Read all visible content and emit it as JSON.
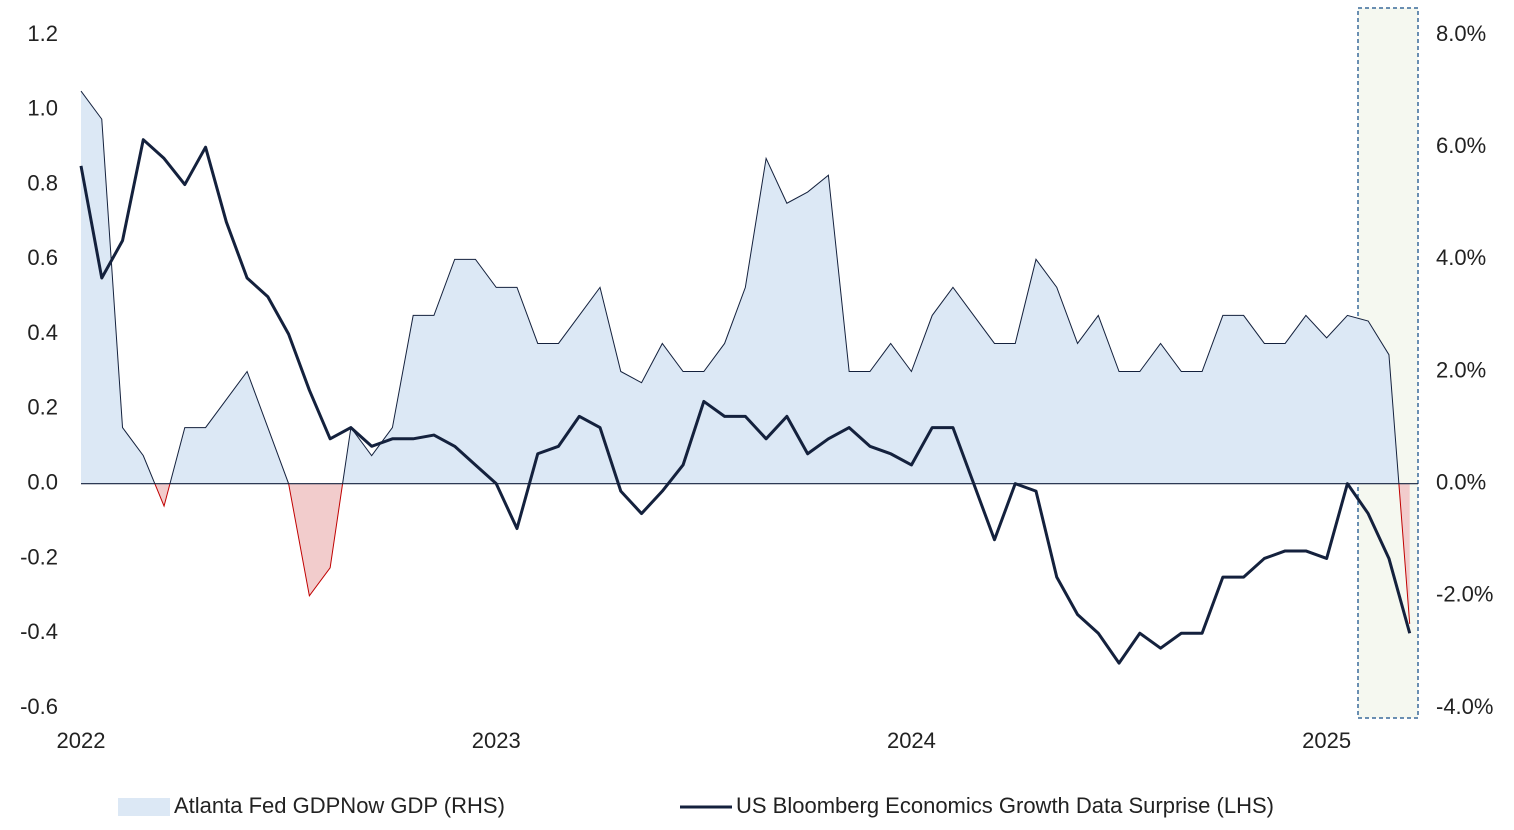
{
  "chart_data": {
    "type": "line",
    "x": [
      2022.0,
      2022.05,
      2022.1,
      2022.15,
      2022.2,
      2022.25,
      2022.3,
      2022.35,
      2022.4,
      2022.45,
      2022.5,
      2022.55,
      2022.6,
      2022.65,
      2022.7,
      2022.75,
      2022.8,
      2022.85,
      2022.9,
      2022.95,
      2023.0,
      2023.05,
      2023.1,
      2023.15,
      2023.2,
      2023.25,
      2023.3,
      2023.35,
      2023.4,
      2023.45,
      2023.5,
      2023.55,
      2023.6,
      2023.65,
      2023.7,
      2023.75,
      2023.8,
      2023.85,
      2023.9,
      2023.95,
      2024.0,
      2024.05,
      2024.1,
      2024.15,
      2024.2,
      2024.25,
      2024.3,
      2024.35,
      2024.4,
      2024.45,
      2024.5,
      2024.55,
      2024.6,
      2024.65,
      2024.7,
      2024.75,
      2024.8,
      2024.85,
      2024.9,
      2024.95,
      2025.0,
      2025.05,
      2025.1,
      2025.15,
      2025.2
    ],
    "series": [
      {
        "name": "Atlanta Fed GDPNow GDP (RHS)",
        "type": "area",
        "axis": "y2",
        "color": "#dce8f5",
        "line_color": "#14213d",
        "negative_color": "#f2cccc",
        "negative_line_color": "#c00000",
        "values": [
          7.0,
          6.5,
          1.0,
          0.5,
          -0.4,
          1.0,
          1.0,
          1.5,
          2.0,
          1.0,
          0.0,
          -2.0,
          -1.5,
          1.0,
          0.5,
          1.0,
          3.0,
          3.0,
          4.0,
          4.0,
          3.5,
          3.5,
          2.5,
          2.5,
          3.0,
          3.5,
          2.0,
          1.8,
          2.5,
          2.0,
          2.0,
          2.5,
          3.5,
          5.8,
          5.0,
          5.2,
          5.5,
          2.0,
          2.0,
          2.5,
          2.0,
          3.0,
          3.5,
          3.0,
          2.5,
          2.5,
          4.0,
          3.5,
          2.5,
          3.0,
          2.0,
          2.0,
          2.5,
          2.0,
          2.0,
          3.0,
          3.0,
          2.5,
          2.5,
          3.0,
          2.6,
          3.0,
          2.9,
          2.3,
          -2.5
        ]
      },
      {
        "name": "US Bloomberg Economics Growth Data Surprise (LHS)",
        "type": "line",
        "color": "#14213d",
        "values": [
          0.85,
          0.55,
          0.65,
          0.92,
          0.87,
          0.8,
          0.9,
          0.7,
          0.55,
          0.5,
          0.4,
          0.25,
          0.12,
          0.15,
          0.1,
          0.12,
          0.12,
          0.13,
          0.1,
          0.05,
          0.0,
          -0.12,
          0.08,
          0.1,
          0.18,
          0.15,
          -0.02,
          -0.08,
          -0.02,
          0.05,
          0.22,
          0.18,
          0.18,
          0.12,
          0.18,
          0.08,
          0.12,
          0.15,
          0.1,
          0.08,
          0.05,
          0.15,
          0.15,
          0.0,
          -0.15,
          0.0,
          -0.02,
          -0.25,
          -0.35,
          -0.4,
          -0.48,
          -0.4,
          -0.44,
          -0.4,
          -0.4,
          -0.25,
          -0.25,
          -0.2,
          -0.18,
          -0.18,
          -0.2,
          0.0,
          -0.08,
          -0.2,
          -0.4
        ]
      }
    ],
    "xlim": [
      2022,
      2025.22
    ],
    "xticks": [
      2022,
      2023,
      2024,
      2025
    ],
    "ylim": [
      -0.6,
      1.2
    ],
    "yticks": [
      -0.6,
      -0.4,
      -0.2,
      {
        "value": 0,
        "label": "0.0"
      },
      0.2,
      0.4,
      0.6,
      0.8,
      {
        "value": 1,
        "label": "1.0"
      },
      1.2
    ],
    "y2lim": [
      -4,
      8
    ],
    "y2ticks": [
      {
        "value": -4,
        "label": "-4.0%"
      },
      {
        "value": -2,
        "label": "-2.0%"
      },
      {
        "value": 0,
        "label": "0.0%"
      },
      {
        "value": 2,
        "label": "2.0%"
      },
      {
        "value": 4,
        "label": "4.0%"
      },
      {
        "value": 6,
        "label": "6.0%"
      },
      {
        "value": 8,
        "label": "8.0%"
      }
    ],
    "grid": false,
    "legend": "bottom"
  }
}
